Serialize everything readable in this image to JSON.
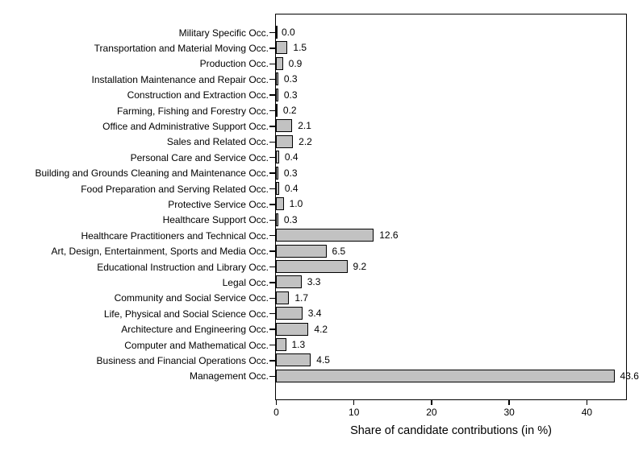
{
  "chart_data": {
    "type": "bar",
    "orientation": "horizontal",
    "title": "",
    "xlabel": "Share of candidate contributions (in %)",
    "ylabel": "",
    "categories": [
      "Military Specific Occ.",
      "Transportation and Material Moving Occ.",
      "Production Occ.",
      "Installation Maintenance and Repair Occ.",
      "Construction and Extraction Occ.",
      "Farming, Fishing and Forestry Occ.",
      "Office and Administrative Support Occ.",
      "Sales and Related Occ.",
      "Personal Care and Service Occ.",
      "Building and Grounds Cleaning and Maintenance Occ.",
      "Food Preparation and Serving Related Occ.",
      "Protective Service Occ.",
      "Healthcare Support Occ.",
      "Healthcare Practitioners and Technical Occ.",
      "Art, Design, Entertainment, Sports and Media Occ.",
      "Educational Instruction and Library Occ.",
      "Legal Occ.",
      "Community and Social Service Occ.",
      "Life, Physical and Social Science Occ.",
      "Architecture and Engineering Occ.",
      "Computer and Mathematical Occ.",
      "Business and Financial Operations Occ.",
      "Management Occ."
    ],
    "values": [
      0.0,
      1.5,
      0.9,
      0.3,
      0.3,
      0.2,
      2.1,
      2.2,
      0.4,
      0.3,
      0.4,
      1.0,
      0.3,
      12.6,
      6.5,
      9.2,
      3.3,
      1.7,
      3.4,
      4.2,
      1.3,
      4.5,
      43.6
    ],
    "value_labels": [
      "0.0",
      "1.5",
      "0.9",
      "0.3",
      "0.3",
      "0.2",
      "2.1",
      "2.2",
      "0.4",
      "0.3",
      "0.4",
      "1.0",
      "0.3",
      "12.6",
      "6.5",
      "9.2",
      "3.3",
      "1.7",
      "3.4",
      "4.2",
      "1.3",
      "4.5",
      "43.6"
    ],
    "x_ticks": [
      "0",
      "10",
      "20",
      "30",
      "40"
    ],
    "x_tick_values": [
      0,
      10,
      20,
      30,
      40
    ],
    "xlim": [
      0,
      45
    ],
    "grid": false,
    "legend": null,
    "bar_fill": "#c2c2c2",
    "bar_border": "#000000"
  }
}
